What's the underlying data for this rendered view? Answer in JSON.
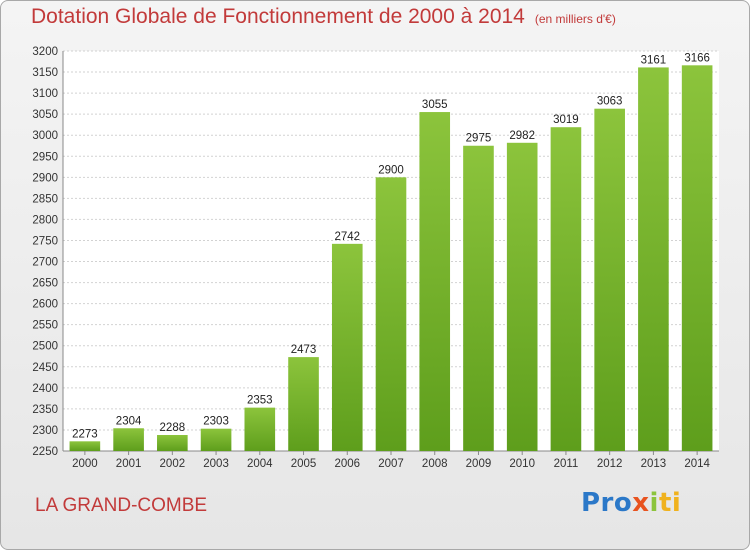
{
  "title": "Dotation Globale de Fonctionnement de 2000 à 2014",
  "unit": "(en milliers d'€)",
  "commune": "LA GRAND-COMBE",
  "logo": {
    "p1": "Pro",
    "p2": "x",
    "p3": "i",
    "p4": "ti"
  },
  "colors": {
    "bar": "#8cc43c",
    "bar_dark": "#5e9e1c",
    "title": "#c23a3a"
  },
  "chart_data": {
    "type": "bar",
    "title": "Dotation Globale de Fonctionnement de 2000 à 2014",
    "subtitle": "(en milliers d'€)",
    "categories": [
      "2000",
      "2001",
      "2002",
      "2003",
      "2004",
      "2005",
      "2006",
      "2007",
      "2008",
      "2009",
      "2010",
      "2011",
      "2012",
      "2013",
      "2014"
    ],
    "values": [
      2273,
      2304,
      2288,
      2303,
      2353,
      2473,
      2742,
      2900,
      3055,
      2975,
      2982,
      3019,
      3063,
      3161,
      3166
    ],
    "ylim": [
      2250,
      3200
    ],
    "yticks": [
      2250,
      2300,
      2350,
      2400,
      2450,
      2500,
      2550,
      2600,
      2650,
      2700,
      2750,
      2800,
      2850,
      2900,
      2950,
      3000,
      3050,
      3100,
      3150,
      3200
    ],
    "grid": true,
    "xlabel": "",
    "ylabel": ""
  }
}
